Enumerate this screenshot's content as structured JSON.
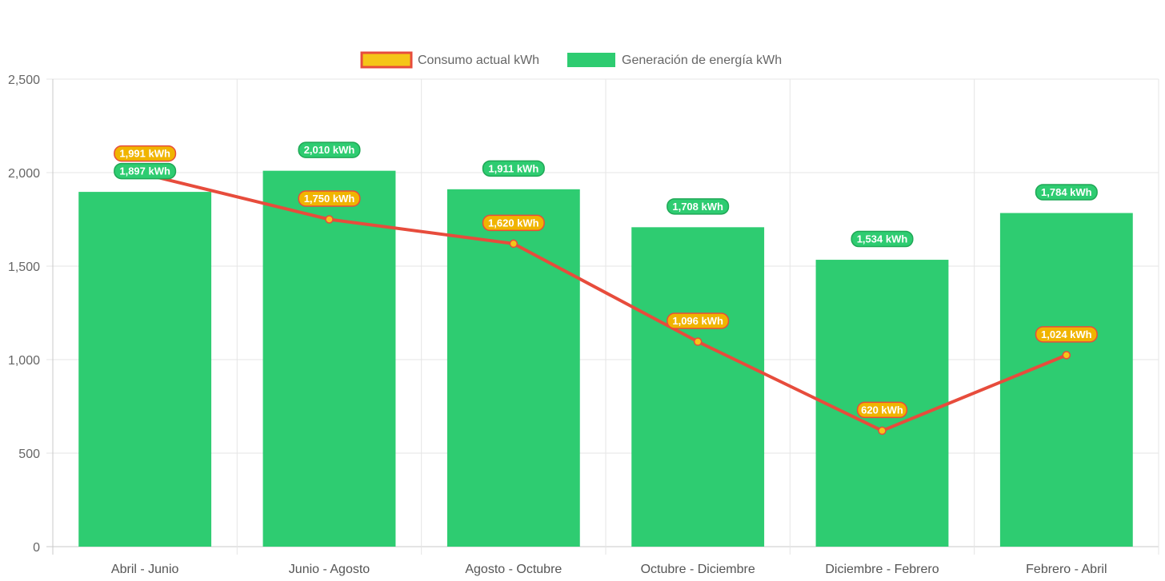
{
  "chart_data": {
    "type": "bar",
    "categories": [
      "Abril - Junio",
      "Junio - Agosto",
      "Agosto - Octubre",
      "Octubre - Diciembre",
      "Diciembre - Febrero",
      "Febrero - Abril"
    ],
    "series": [
      {
        "name": "Consumo actual kWh",
        "type": "line",
        "values": [
          1991,
          1750,
          1620,
          1096,
          620,
          1024
        ],
        "labels": [
          "1,991 kWh",
          "1,750 kWh",
          "1,620 kWh",
          "1,096 kWh",
          "620 kWh",
          "1,024 kWh"
        ],
        "color": "#e74c3c",
        "point_color": "#f5c518"
      },
      {
        "name": "Generación de energía kWh",
        "type": "bar",
        "values": [
          1897,
          2010,
          1911,
          1708,
          1534,
          1784
        ],
        "labels": [
          "1,897 kWh",
          "2,010 kWh",
          "1,911 kWh",
          "1,708 kWh",
          "1,534 kWh",
          "1,784 kWh"
        ],
        "color": "#2ecc71"
      }
    ],
    "ylim": [
      0,
      2500
    ],
    "yticks": [
      0,
      500,
      1000,
      1500,
      2000,
      2500
    ],
    "ytick_labels": [
      "0",
      "500",
      "1,000",
      "1,500",
      "2,000",
      "2,500"
    ],
    "grid": true,
    "legend": "top-center",
    "title": "",
    "xlabel": "",
    "ylabel": ""
  }
}
